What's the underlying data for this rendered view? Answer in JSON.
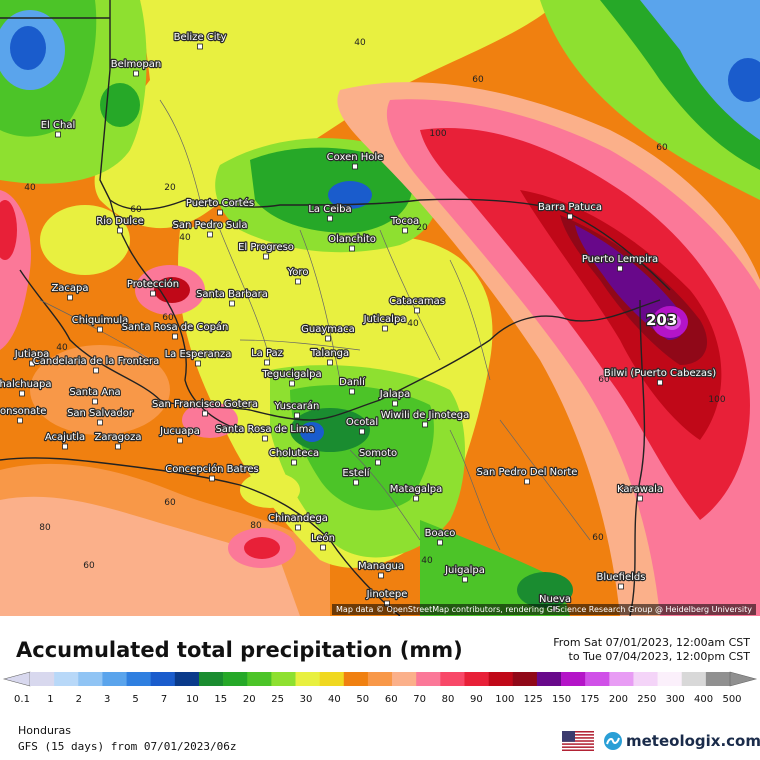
{
  "map": {
    "attribution": "Map data © OpenStreetMap contributors, rendering GIScience Research Group @ Heidelberg University",
    "max_value": "203",
    "cities": [
      {
        "name": "Belize City"
      },
      {
        "name": "Belmopan"
      },
      {
        "name": "El Chal"
      },
      {
        "name": "Coxen Hole"
      },
      {
        "name": "Puerto Cortés"
      },
      {
        "name": "Rio Dulce"
      },
      {
        "name": "San Pedro Sula"
      },
      {
        "name": "La Ceiba"
      },
      {
        "name": "Tocoa"
      },
      {
        "name": "Olanchito"
      },
      {
        "name": "El Progreso"
      },
      {
        "name": "Barra Patuca"
      },
      {
        "name": "Puerto Lempira"
      },
      {
        "name": "Zacapa"
      },
      {
        "name": "Protección"
      },
      {
        "name": "Santa Barbara"
      },
      {
        "name": "Yoro"
      },
      {
        "name": "Catacamas"
      },
      {
        "name": "Chiquimula"
      },
      {
        "name": "Santa Rosa de Copán"
      },
      {
        "name": "Juticalpa"
      },
      {
        "name": "Guaymaca"
      },
      {
        "name": "Jutiapa"
      },
      {
        "name": "Candelaria de la Frontera"
      },
      {
        "name": "La Esperanza"
      },
      {
        "name": "La Paz"
      },
      {
        "name": "Talanga"
      },
      {
        "name": "Bilwi (Puerto Cabezas)"
      },
      {
        "name": "Chalchuapa"
      },
      {
        "name": "Santa Ana"
      },
      {
        "name": "Tegucigalpa"
      },
      {
        "name": "Danlí"
      },
      {
        "name": "Jalapa"
      },
      {
        "name": "Sonsonate"
      },
      {
        "name": "San Salvador"
      },
      {
        "name": "San Francisco Gotera"
      },
      {
        "name": "Yuscarán"
      },
      {
        "name": "Wiwili de Jinotega"
      },
      {
        "name": "Ocotal"
      },
      {
        "name": "Acajutla"
      },
      {
        "name": "Zaragoza"
      },
      {
        "name": "Jucuapa"
      },
      {
        "name": "Santa Rosa de Lima"
      },
      {
        "name": "Somoto"
      },
      {
        "name": "Choluteca"
      },
      {
        "name": "Concepción Batres"
      },
      {
        "name": "Estelí"
      },
      {
        "name": "San Pedro Del Norte"
      },
      {
        "name": "Matagalpa"
      },
      {
        "name": "Karawala"
      },
      {
        "name": "Chinandega"
      },
      {
        "name": "León"
      },
      {
        "name": "Boaco"
      },
      {
        "name": "Managua"
      },
      {
        "name": "Juigalpa"
      },
      {
        "name": "Bluefields"
      },
      {
        "name": "Jinotepe"
      },
      {
        "name": "Nueva"
      }
    ],
    "contour_labels": [
      "40",
      "60",
      "100",
      "40",
      "40",
      "40",
      "60",
      "60",
      "20",
      "60",
      "100",
      "60",
      "80",
      "80",
      "60",
      "40",
      "40",
      "60",
      "60",
      "20"
    ]
  },
  "footer": {
    "title": "Accumulated total precipitation (mm)",
    "period_from": "From Sat 07/01/2023, 12:00am CST",
    "period_to": "to Tue 07/04/2023, 12:00pm CST",
    "region": "Honduras",
    "model": "GFS (15 days) from 07/01/2023/06z",
    "brand": "meteologix.com"
  },
  "legend": {
    "ticks": [
      "0.1",
      "1",
      "2",
      "3",
      "5",
      "7",
      "10",
      "15",
      "20",
      "25",
      "30",
      "40",
      "50",
      "60",
      "70",
      "80",
      "90",
      "100",
      "125",
      "150",
      "175",
      "200",
      "250",
      "300",
      "400",
      "500"
    ],
    "colors": [
      "#d8d8ee",
      "#b8d8f8",
      "#90c4f4",
      "#5aa4ec",
      "#2f7fe0",
      "#1a5ccc",
      "#0a3a8a",
      "#1a8c30",
      "#26a828",
      "#4cc428",
      "#8ee030",
      "#e8f040",
      "#f0d820",
      "#f08010",
      "#f89848",
      "#fbb08a",
      "#fb7898",
      "#f84868",
      "#e82038",
      "#c00818",
      "#900818",
      "#68088a",
      "#b414c8",
      "#d050e8",
      "#e89cf4",
      "#f4d4f8",
      "#fbf0fb",
      "#d8d8d8",
      "#909090"
    ]
  }
}
